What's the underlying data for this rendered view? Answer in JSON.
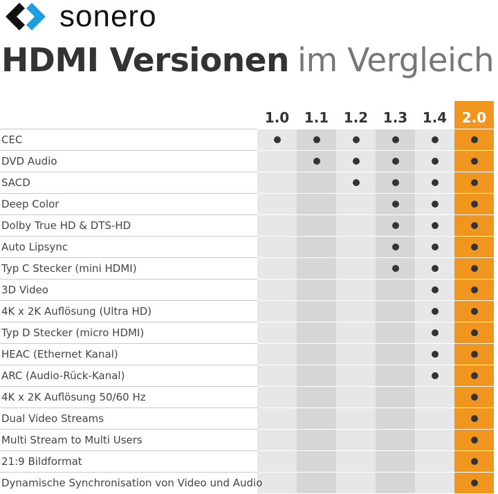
{
  "brand": {
    "name": "sonero",
    "colors": {
      "dark": "#111111",
      "blue": "#1e9ee0"
    }
  },
  "title": {
    "bold": "HDMI Versionen",
    "light": "im Vergleich"
  },
  "accent": "#f0961e",
  "versions": [
    "1.0",
    "1.1",
    "1.2",
    "1.3",
    "1.4",
    "2.0"
  ],
  "features": [
    {
      "label": "CEC",
      "supported": [
        true,
        true,
        true,
        true,
        true,
        true
      ]
    },
    {
      "label": "DVD Audio",
      "supported": [
        false,
        true,
        true,
        true,
        true,
        true
      ]
    },
    {
      "label": "SACD",
      "supported": [
        false,
        false,
        true,
        true,
        true,
        true
      ]
    },
    {
      "label": "Deep Color",
      "supported": [
        false,
        false,
        false,
        true,
        true,
        true
      ]
    },
    {
      "label": "Dolby True HD & DTS-HD",
      "supported": [
        false,
        false,
        false,
        true,
        true,
        true
      ]
    },
    {
      "label": "Auto Lipsync",
      "supported": [
        false,
        false,
        false,
        true,
        true,
        true
      ]
    },
    {
      "label": "Typ C Stecker (mini HDMI)",
      "supported": [
        false,
        false,
        false,
        true,
        true,
        true
      ]
    },
    {
      "label": "3D Video",
      "supported": [
        false,
        false,
        false,
        false,
        true,
        true
      ]
    },
    {
      "label": "4K x 2K Auflösung (Ultra HD)",
      "supported": [
        false,
        false,
        false,
        false,
        true,
        true
      ]
    },
    {
      "label": "Typ D Stecker (micro HDMI)",
      "supported": [
        false,
        false,
        false,
        false,
        true,
        true
      ]
    },
    {
      "label": "HEAC (Ethernet Kanal)",
      "supported": [
        false,
        false,
        false,
        false,
        true,
        true
      ]
    },
    {
      "label": "ARC (Audio-Rück-Kanal)",
      "supported": [
        false,
        false,
        false,
        false,
        true,
        true
      ]
    },
    {
      "label": "4K x 2K Auflösung 50/60 Hz",
      "supported": [
        false,
        false,
        false,
        false,
        false,
        true
      ]
    },
    {
      "label": "Dual Video Streams",
      "supported": [
        false,
        false,
        false,
        false,
        false,
        true
      ]
    },
    {
      "label": "Multi Stream to Multi Users",
      "supported": [
        false,
        false,
        false,
        false,
        false,
        true
      ]
    },
    {
      "label": "21:9 Bildformat",
      "supported": [
        false,
        false,
        false,
        false,
        false,
        true
      ]
    },
    {
      "label": "Dynamische Synchronisation von Video und Audio",
      "supported": [
        false,
        false,
        false,
        false,
        false,
        true
      ]
    }
  ]
}
